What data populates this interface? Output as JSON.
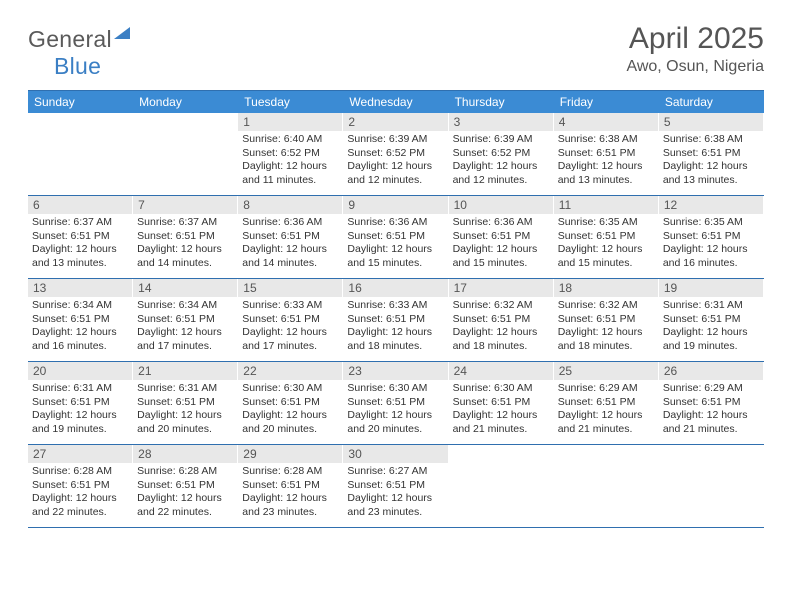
{
  "brand": {
    "word1": "General",
    "word2": "Blue"
  },
  "title": "April 2025",
  "location": "Awo, Osun, Nigeria",
  "colors": {
    "header_bg": "#3b8bd4",
    "border": "#2f6faf",
    "daynum_bg": "#e8e8e8",
    "text": "#555555"
  },
  "weekdays": [
    "Sunday",
    "Monday",
    "Tuesday",
    "Wednesday",
    "Thursday",
    "Friday",
    "Saturday"
  ],
  "weeks": [
    [
      {
        "empty": true
      },
      {
        "empty": true
      },
      {
        "n": "1",
        "sr": "6:40 AM",
        "ss": "6:52 PM",
        "dl": "12 hours and 11 minutes."
      },
      {
        "n": "2",
        "sr": "6:39 AM",
        "ss": "6:52 PM",
        "dl": "12 hours and 12 minutes."
      },
      {
        "n": "3",
        "sr": "6:39 AM",
        "ss": "6:52 PM",
        "dl": "12 hours and 12 minutes."
      },
      {
        "n": "4",
        "sr": "6:38 AM",
        "ss": "6:51 PM",
        "dl": "12 hours and 13 minutes."
      },
      {
        "n": "5",
        "sr": "6:38 AM",
        "ss": "6:51 PM",
        "dl": "12 hours and 13 minutes."
      }
    ],
    [
      {
        "n": "6",
        "sr": "6:37 AM",
        "ss": "6:51 PM",
        "dl": "12 hours and 13 minutes."
      },
      {
        "n": "7",
        "sr": "6:37 AM",
        "ss": "6:51 PM",
        "dl": "12 hours and 14 minutes."
      },
      {
        "n": "8",
        "sr": "6:36 AM",
        "ss": "6:51 PM",
        "dl": "12 hours and 14 minutes."
      },
      {
        "n": "9",
        "sr": "6:36 AM",
        "ss": "6:51 PM",
        "dl": "12 hours and 15 minutes."
      },
      {
        "n": "10",
        "sr": "6:36 AM",
        "ss": "6:51 PM",
        "dl": "12 hours and 15 minutes."
      },
      {
        "n": "11",
        "sr": "6:35 AM",
        "ss": "6:51 PM",
        "dl": "12 hours and 15 minutes."
      },
      {
        "n": "12",
        "sr": "6:35 AM",
        "ss": "6:51 PM",
        "dl": "12 hours and 16 minutes."
      }
    ],
    [
      {
        "n": "13",
        "sr": "6:34 AM",
        "ss": "6:51 PM",
        "dl": "12 hours and 16 minutes."
      },
      {
        "n": "14",
        "sr": "6:34 AM",
        "ss": "6:51 PM",
        "dl": "12 hours and 17 minutes."
      },
      {
        "n": "15",
        "sr": "6:33 AM",
        "ss": "6:51 PM",
        "dl": "12 hours and 17 minutes."
      },
      {
        "n": "16",
        "sr": "6:33 AM",
        "ss": "6:51 PM",
        "dl": "12 hours and 18 minutes."
      },
      {
        "n": "17",
        "sr": "6:32 AM",
        "ss": "6:51 PM",
        "dl": "12 hours and 18 minutes."
      },
      {
        "n": "18",
        "sr": "6:32 AM",
        "ss": "6:51 PM",
        "dl": "12 hours and 18 minutes."
      },
      {
        "n": "19",
        "sr": "6:31 AM",
        "ss": "6:51 PM",
        "dl": "12 hours and 19 minutes."
      }
    ],
    [
      {
        "n": "20",
        "sr": "6:31 AM",
        "ss": "6:51 PM",
        "dl": "12 hours and 19 minutes."
      },
      {
        "n": "21",
        "sr": "6:31 AM",
        "ss": "6:51 PM",
        "dl": "12 hours and 20 minutes."
      },
      {
        "n": "22",
        "sr": "6:30 AM",
        "ss": "6:51 PM",
        "dl": "12 hours and 20 minutes."
      },
      {
        "n": "23",
        "sr": "6:30 AM",
        "ss": "6:51 PM",
        "dl": "12 hours and 20 minutes."
      },
      {
        "n": "24",
        "sr": "6:30 AM",
        "ss": "6:51 PM",
        "dl": "12 hours and 21 minutes."
      },
      {
        "n": "25",
        "sr": "6:29 AM",
        "ss": "6:51 PM",
        "dl": "12 hours and 21 minutes."
      },
      {
        "n": "26",
        "sr": "6:29 AM",
        "ss": "6:51 PM",
        "dl": "12 hours and 21 minutes."
      }
    ],
    [
      {
        "n": "27",
        "sr": "6:28 AM",
        "ss": "6:51 PM",
        "dl": "12 hours and 22 minutes."
      },
      {
        "n": "28",
        "sr": "6:28 AM",
        "ss": "6:51 PM",
        "dl": "12 hours and 22 minutes."
      },
      {
        "n": "29",
        "sr": "6:28 AM",
        "ss": "6:51 PM",
        "dl": "12 hours and 23 minutes."
      },
      {
        "n": "30",
        "sr": "6:27 AM",
        "ss": "6:51 PM",
        "dl": "12 hours and 23 minutes."
      },
      {
        "empty": true
      },
      {
        "empty": true
      },
      {
        "empty": true
      }
    ]
  ],
  "labels": {
    "sunrise": "Sunrise:",
    "sunset": "Sunset:",
    "daylight": "Daylight:"
  }
}
